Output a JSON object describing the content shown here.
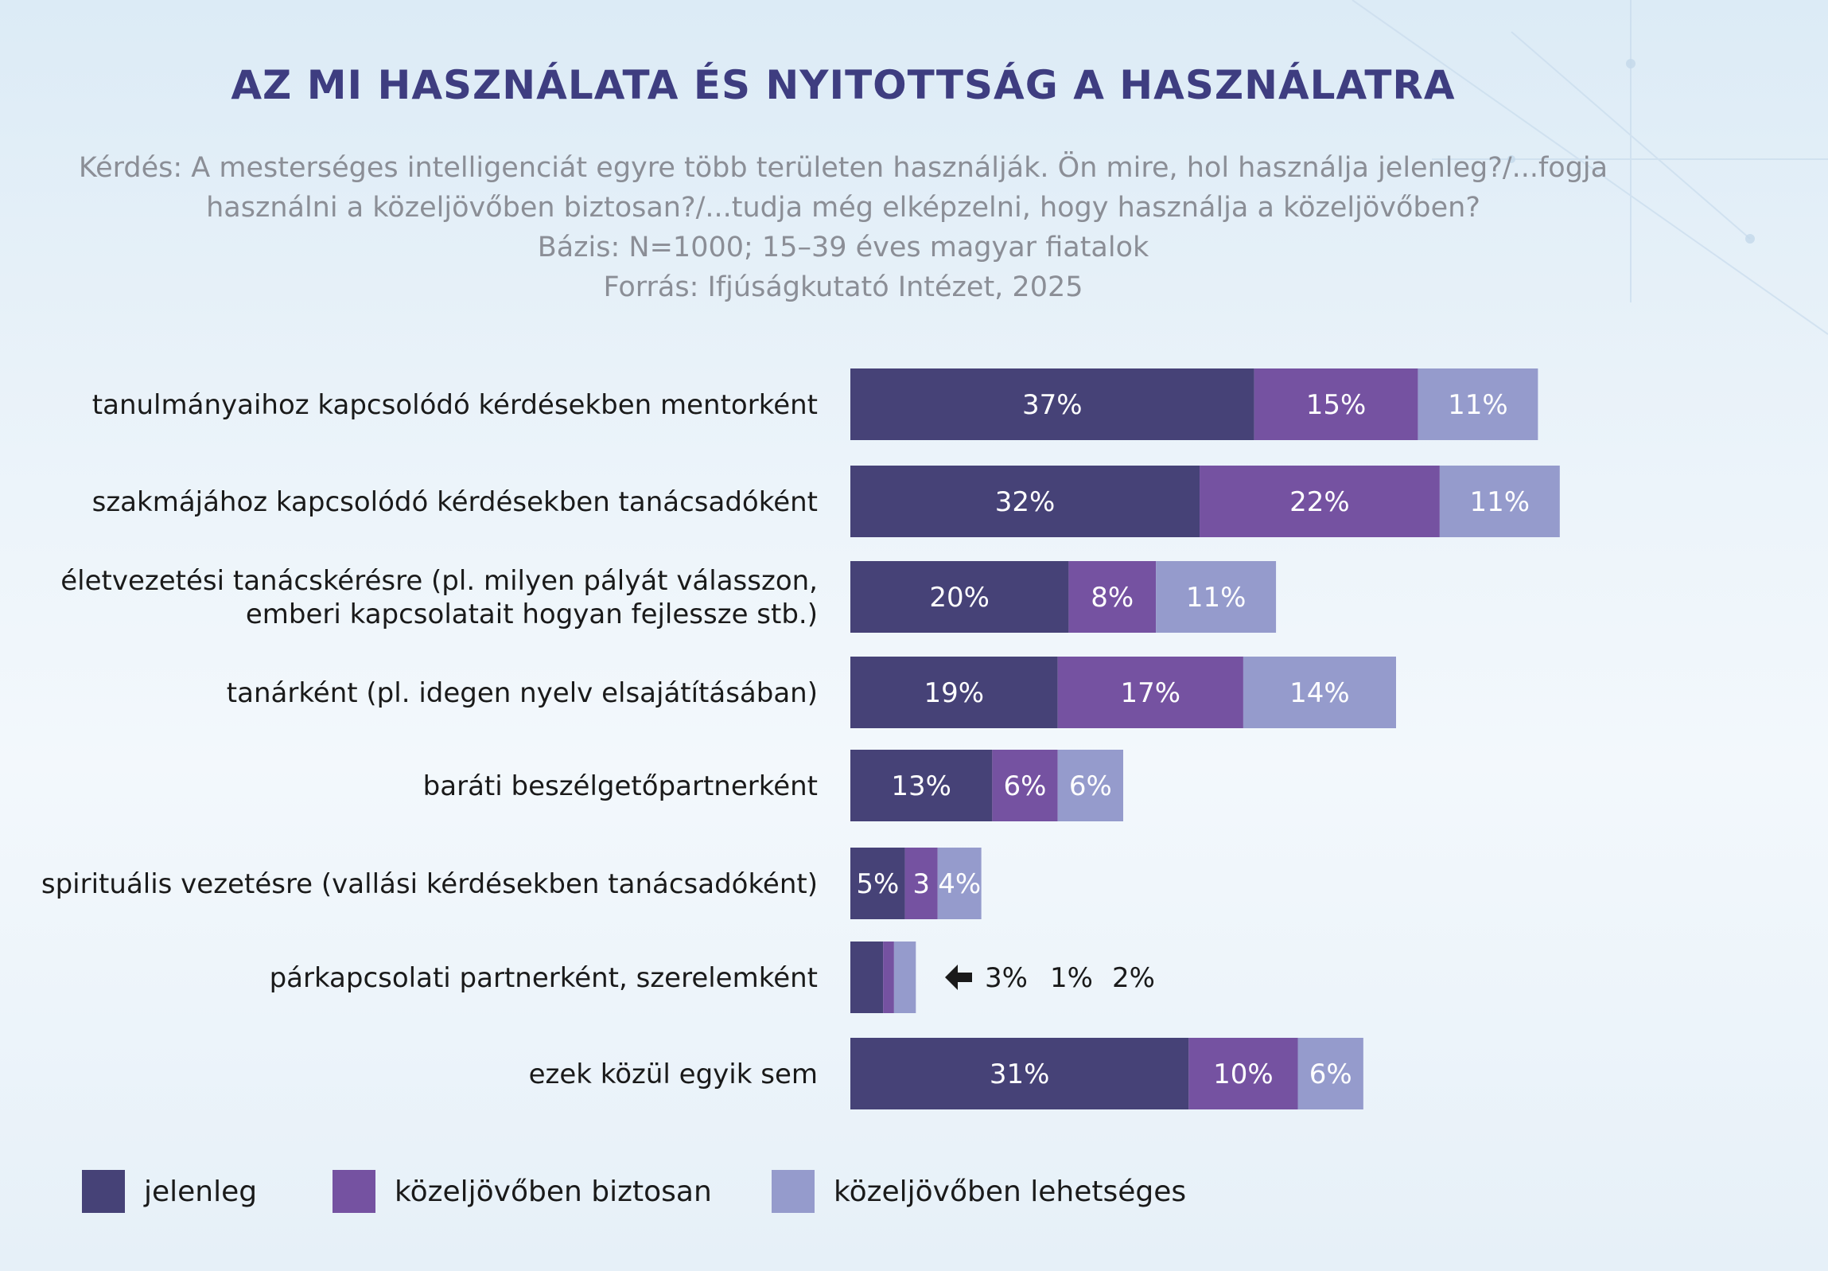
{
  "header": {
    "title": "AZ MI HASZNÁLATA ÉS NYITOTTSÁG A HASZNÁLATRA",
    "subtitle_lines": [
      "Kérdés: A mesterséges intelligenciát egyre több területen használják. Ön mire, hol használja jelenleg?/...fogja",
      "használni a közeljövőben biztosan?/...tudja még elképzelni, hogy használja a közeljövőben?",
      "Bázis: N=1000; 15–39 éves magyar fiatalok",
      "Forrás: Ifjúságkutató Intézet, 2025"
    ]
  },
  "colors": {
    "jelenleg": "#464277",
    "biztosan": "#7552a1",
    "lehetseges": "#959bcc"
  },
  "chart_data": {
    "type": "bar",
    "orientation": "horizontal",
    "stacked": true,
    "categories": [
      [
        "tanulmányaihoz kapcsolódó kérdésekben mentorként"
      ],
      [
        "szakmájához kapcsolódó kérdésekben tanácsadóként"
      ],
      [
        "életvezetési tanácskérésre (pl. milyen pályát válasszon,",
        "emberi kapcsolatait hogyan fejlessze stb.)"
      ],
      [
        "tanárként (pl. idegen nyelv elsajátításában)"
      ],
      [
        "baráti beszélgetőpartnerként"
      ],
      [
        "spirituális vezetésre (vallási kérdésekben tanácsadóként)"
      ],
      [
        "párkapcsolati partnerként, szerelemként"
      ],
      [
        "ezek közül egyik sem"
      ]
    ],
    "series": [
      {
        "name": "jelenleg",
        "values": [
          37,
          32,
          20,
          19,
          13,
          5,
          3,
          31
        ],
        "labels": [
          "37%",
          "32%",
          "20%",
          "19%",
          "13%",
          "5%",
          "3%",
          "31%"
        ]
      },
      {
        "name": "közeljövőben biztosan",
        "values": [
          15,
          22,
          8,
          17,
          6,
          3,
          1,
          10
        ],
        "labels": [
          "15%",
          "22%",
          "8%",
          "17%",
          "6%",
          "3",
          "1%",
          "10%"
        ]
      },
      {
        "name": "közeljövőben lehetséges",
        "values": [
          11,
          11,
          11,
          14,
          6,
          4,
          2,
          6
        ],
        "labels": [
          "11%",
          "11%",
          "11%",
          "14%",
          "6%",
          "4%",
          "2%",
          "6%"
        ]
      }
    ],
    "outside_label_row": 6,
    "legend_position": "bottom"
  }
}
